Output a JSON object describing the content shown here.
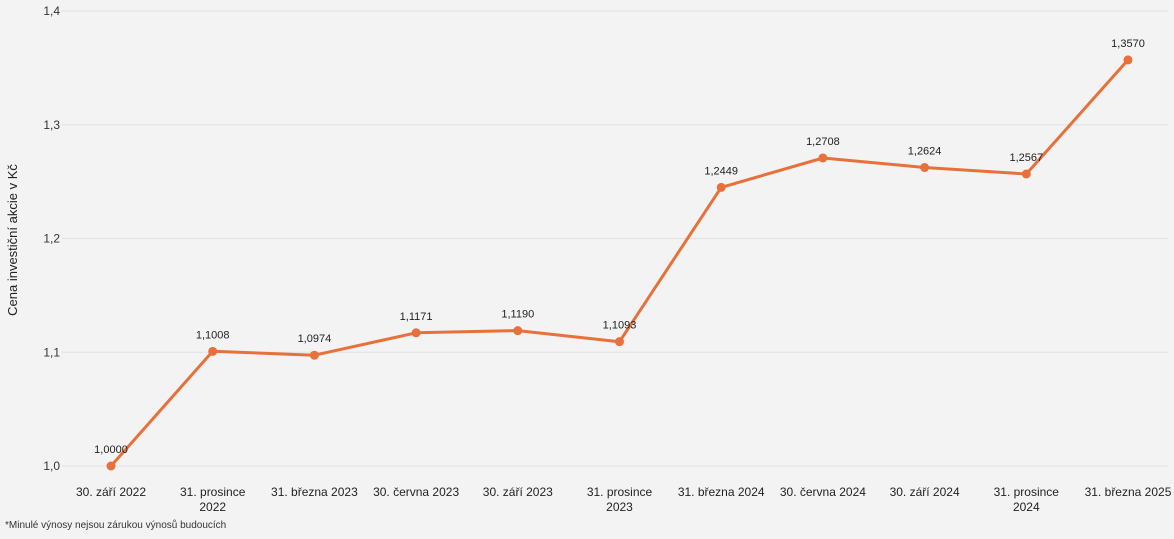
{
  "chart_data": {
    "type": "line",
    "x": [
      "30. září 2022",
      "31. prosince 2022",
      "31. března 2023",
      "30. června 2023",
      "30. září 2023",
      "31. prosince 2023",
      "31. března 2024",
      "30. června 2024",
      "30. září 2024",
      "31. prosince 2024",
      "31. března 2025"
    ],
    "x_tick_lines": [
      [
        "30. září 2022"
      ],
      [
        "31. prosince",
        "2022"
      ],
      [
        "31. března 2023"
      ],
      [
        "30. června 2023"
      ],
      [
        "30. září 2023"
      ],
      [
        "31. prosince",
        "2023"
      ],
      [
        "31. března 2024"
      ],
      [
        "30. června 2024"
      ],
      [
        "30. září 2024"
      ],
      [
        "31. prosince",
        "2024"
      ],
      [
        "31. března 2025"
      ]
    ],
    "series": [
      {
        "values": [
          1.0,
          1.1008,
          1.0974,
          1.1171,
          1.119,
          1.1093,
          1.2449,
          1.2708,
          1.2624,
          1.2567,
          1.357
        ],
        "labels": [
          "1,0000",
          "1,1008",
          "1,0974",
          "1,1171",
          "1,1190",
          "1,1093",
          "1,2449",
          "1,2708",
          "1,2624",
          "1,2567",
          "1,3570"
        ],
        "color": "#e8703a"
      }
    ],
    "ylabel": "Cena investiční akcie v Kč",
    "ylim": [
      1.0,
      1.4
    ],
    "y_ticks": [
      1.0,
      1.1,
      1.2,
      1.3,
      1.4
    ],
    "y_tick_labels": [
      "1,0",
      "1,1",
      "1,2",
      "1,3",
      "1,4"
    ],
    "grid": true,
    "gridColor": "#e2e2e2",
    "legend": "none"
  },
  "footnote": "*Minulé výnosy nejsou zárukou výnosů budoucích"
}
